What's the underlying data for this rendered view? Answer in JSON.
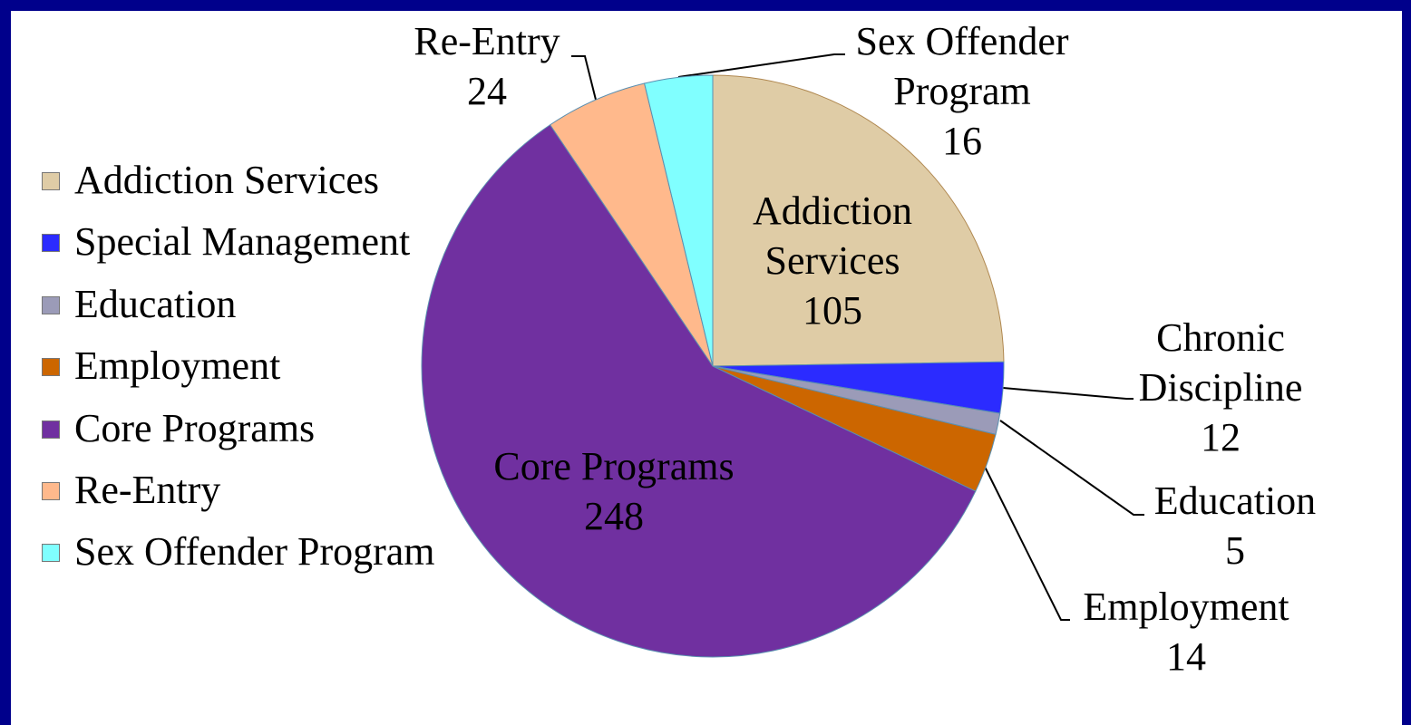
{
  "chart_data": {
    "type": "pie",
    "categories": [
      "Addiction Services",
      "Special Management",
      "Education",
      "Employment",
      "Core Programs",
      "Re-Entry",
      "Sex Offender Program"
    ],
    "data_label_names": [
      "Addiction Services",
      "Chronic Discipline",
      "Education",
      "Employment",
      "Core Programs",
      "Re-Entry",
      "Sex Offender Program"
    ],
    "values": [
      105,
      12,
      5,
      14,
      248,
      24,
      16
    ],
    "colors": [
      "#dfcca6",
      "#2b2bff",
      "#9b9bb8",
      "#cc6600",
      "#7030a0",
      "#ffb98c",
      "#80ffff"
    ],
    "legend": "left"
  }
}
